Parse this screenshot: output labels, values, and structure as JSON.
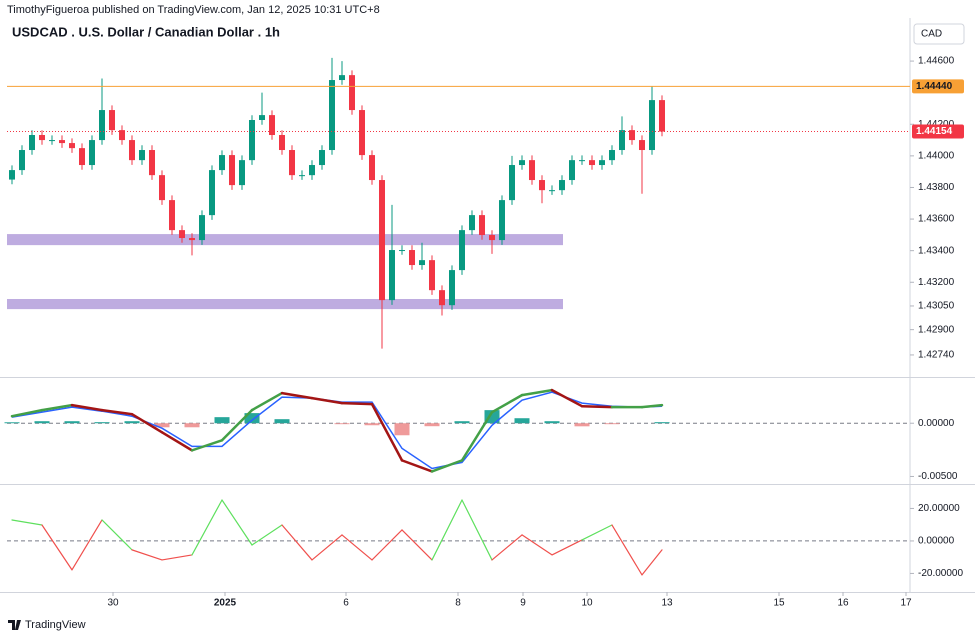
{
  "header": "TimothyFigueroa published on TradingView.com, Jan 12, 2025 10:31 UTC+8",
  "footer": "TradingView",
  "chart_data": [
    {
      "type": "candlestick",
      "title": "USDCAD . U.S. Dollar / Canadian Dollar . 1h",
      "currency": "CAD",
      "up_color": "#089981",
      "down_color": "#f23645",
      "open": [
        1.4385,
        1.4391,
        1.44037,
        1.44132,
        1.441,
        1.441,
        1.44081,
        1.44049,
        1.43942,
        1.441,
        1.4429,
        1.44163,
        1.441,
        1.43973,
        1.44037,
        1.43878,
        1.4372,
        1.4353,
        1.4348,
        1.43467,
        1.43625,
        1.4391,
        1.44005,
        1.43815,
        1.43973,
        1.44227,
        1.44258,
        1.44132,
        1.44037,
        1.43878,
        1.43878,
        1.43942,
        1.44037,
        1.4448,
        1.44511,
        1.4429,
        1.44005,
        1.43847,
        1.43087,
        1.43404,
        1.43404,
        1.43309,
        1.4334,
        1.4315,
        1.43055,
        1.43277,
        1.4353,
        1.43625,
        1.43499,
        1.43467,
        1.4372,
        1.43942,
        1.43973,
        1.43847,
        1.43783,
        1.43783,
        1.43847,
        1.43973,
        1.43973,
        1.43942,
        1.43973,
        1.44037,
        1.44163,
        1.441,
        1.44037,
        1.44353
      ],
      "high": [
        1.4394,
        1.44067,
        1.44162,
        1.44162,
        1.4413,
        1.4413,
        1.44111,
        1.44079,
        1.4413,
        1.4449,
        1.4432,
        1.44193,
        1.4413,
        1.44067,
        1.44067,
        1.43908,
        1.4375,
        1.4356,
        1.4351,
        1.43655,
        1.4394,
        1.44035,
        1.44035,
        1.44003,
        1.44257,
        1.444,
        1.44288,
        1.44162,
        1.44067,
        1.43908,
        1.43972,
        1.44067,
        1.4462,
        1.446,
        1.44541,
        1.4432,
        1.44035,
        1.43877,
        1.4369,
        1.43434,
        1.43434,
        1.4345,
        1.4337,
        1.4318,
        1.43307,
        1.4356,
        1.43655,
        1.43655,
        1.43529,
        1.4375,
        1.44,
        1.44003,
        1.44003,
        1.43877,
        1.43813,
        1.43877,
        1.44003,
        1.44003,
        1.44003,
        1.44003,
        1.44067,
        1.4425,
        1.44193,
        1.4413,
        1.4444,
        1.44383
      ],
      "low": [
        1.4382,
        1.4388,
        1.44007,
        1.4407,
        1.4407,
        1.44051,
        1.44019,
        1.43912,
        1.43912,
        1.4407,
        1.44133,
        1.4407,
        1.43943,
        1.43943,
        1.43848,
        1.4369,
        1.435,
        1.4345,
        1.4337,
        1.43437,
        1.43595,
        1.4388,
        1.43785,
        1.43785,
        1.43943,
        1.44197,
        1.44102,
        1.44007,
        1.43848,
        1.43848,
        1.43848,
        1.43912,
        1.44007,
        1.4445,
        1.4426,
        1.43975,
        1.43817,
        1.4278,
        1.43057,
        1.43374,
        1.43279,
        1.43279,
        1.4312,
        1.4299,
        1.43025,
        1.43247,
        1.435,
        1.43469,
        1.4338,
        1.43437,
        1.4369,
        1.43912,
        1.43817,
        1.437,
        1.43753,
        1.43753,
        1.43817,
        1.43943,
        1.43912,
        1.43912,
        1.43943,
        1.44007,
        1.4407,
        1.4376,
        1.44007,
        1.44124
      ],
      "close": [
        1.4391,
        1.44037,
        1.44132,
        1.441,
        1.441,
        1.44081,
        1.44049,
        1.43942,
        1.441,
        1.4429,
        1.44163,
        1.441,
        1.43973,
        1.44037,
        1.43878,
        1.4372,
        1.4353,
        1.4348,
        1.43467,
        1.43625,
        1.4391,
        1.44005,
        1.43815,
        1.43973,
        1.44227,
        1.44258,
        1.44132,
        1.44037,
        1.43878,
        1.43878,
        1.43942,
        1.44037,
        1.4448,
        1.44511,
        1.4429,
        1.44005,
        1.43847,
        1.43087,
        1.43404,
        1.43404,
        1.43309,
        1.4334,
        1.4315,
        1.43055,
        1.43277,
        1.4353,
        1.43625,
        1.43499,
        1.43467,
        1.4372,
        1.43942,
        1.43973,
        1.43847,
        1.43783,
        1.43783,
        1.43847,
        1.43973,
        1.43973,
        1.43942,
        1.43973,
        1.44037,
        1.44163,
        1.441,
        1.44037,
        1.44353,
        1.44154
      ],
      "zones": [
        {
          "top": 1.43505,
          "bottom": 1.43435,
          "end": 55.1,
          "color": "#b39ddb"
        },
        {
          "top": 1.43094,
          "bottom": 1.4303,
          "end": 55.1,
          "color": "#b39ddb"
        }
      ],
      "levels": [
        {
          "value": 1.4444,
          "label": "1.44440",
          "color": "#f7a035",
          "text_color": "#131722",
          "style": "solid"
        },
        {
          "value": 1.44154,
          "label": "1.44154",
          "color": "#f23645",
          "text_color": "#ffffff",
          "style": "dotted"
        }
      ],
      "xlim": [
        -0.5,
        89.8
      ],
      "ylim": [
        1.42613,
        1.4486
      ],
      "yticks": [
        {
          "value": 1.446,
          "label": "1.44600"
        },
        {
          "value": 1.442,
          "label": "1.44200"
        },
        {
          "value": 1.44,
          "label": "1.44000"
        },
        {
          "value": 1.438,
          "label": "1.43800"
        },
        {
          "value": 1.436,
          "label": "1.43600"
        },
        {
          "value": 1.434,
          "label": "1.43400"
        },
        {
          "value": 1.432,
          "label": "1.43200"
        },
        {
          "value": 1.4305,
          "label": "1.43050"
        },
        {
          "value": 1.429,
          "label": "1.42900"
        },
        {
          "value": 1.4274,
          "label": "1.42740"
        }
      ]
    },
    {
      "type": "line",
      "x": [
        0,
        3,
        6,
        9,
        12,
        15,
        18,
        21,
        24,
        27,
        30,
        33,
        36,
        39,
        42,
        45,
        48,
        51,
        54,
        57,
        60,
        63,
        65
      ],
      "series": [
        {
          "style": "histogram",
          "up_color": "#26a69a",
          "down_color": "#ef9a9a",
          "values": [
            9e-05,
            0.00019,
            0.00019,
            0.0001,
            0.00019,
            -0.00038,
            -0.00038,
            0.00057,
            0.00095,
            0.00038,
            0,
            -9e-05,
            -0.00019,
            -0.00113,
            -0.00028,
            0.00019,
            0.00123,
            0.00047,
            0.00019,
            -0.00029,
            -9e-05,
            0,
            0.0001
          ]
        },
        {
          "style": "line",
          "color": "#2962ff",
          "values": [
            0.00057,
            0.00104,
            0.00151,
            0.00113,
            0.00066,
            -0.00047,
            -0.00217,
            -0.00217,
            0.00028,
            0.00245,
            0.00236,
            0.00198,
            0.00198,
            -0.00236,
            -0.00425,
            -0.00368,
            -0.00019,
            0.00217,
            0.00292,
            0.00189,
            0.0016,
            0.00151,
            0.0016
          ]
        },
        {
          "style": "slope",
          "up_color": "#43a047",
          "down_color": "#a31515",
          "values": [
            0.00066,
            0.00123,
            0.0017,
            0.00123,
            0.00085,
            -0.00085,
            -0.00255,
            -0.0016,
            0.00123,
            0.00283,
            0.00236,
            0.00189,
            0.00179,
            -0.00349,
            -0.00453,
            -0.00349,
            0.00104,
            0.00264,
            0.00311,
            0.0016,
            0.00151,
            0.00151,
            0.0017
          ]
        }
      ],
      "xlim": [
        -0.5,
        89.8
      ],
      "ylim": [
        -0.00552,
        0.00406
      ],
      "yticks": [
        {
          "value": 0,
          "label": "0.00000"
        },
        {
          "value": -0.005,
          "label": "-0.00500"
        }
      ],
      "zero_line": true
    },
    {
      "type": "line",
      "x": [
        0,
        3,
        6,
        9,
        12,
        15,
        18,
        21,
        24,
        27,
        30,
        33,
        36,
        39,
        42,
        45,
        48,
        51,
        54,
        57,
        60,
        63,
        65
      ],
      "series": [
        {
          "style": "sign",
          "up_color": "#5ee05e",
          "down_color": "#f0504d",
          "values": [
            12.9,
            9.8,
            -17.8,
            12.9,
            -5.5,
            -11.7,
            -8.6,
            25.2,
            -2.5,
            9.8,
            -11.7,
            3.7,
            -11.7,
            6.8,
            -11.7,
            25.2,
            -11.7,
            3.7,
            -8.6,
            0.6,
            9.8,
            -20.9,
            -5.5
          ]
        }
      ],
      "xlim": [
        -0.5,
        89.8
      ],
      "ylim": [
        -30.2,
        33.2
      ],
      "yticks": [
        {
          "value": 20,
          "label": "20.00000"
        },
        {
          "value": 0,
          "label": "0.00000"
        },
        {
          "value": -20,
          "label": "-20.00000"
        }
      ],
      "zero_line": true,
      "xticks": [
        {
          "value": 10.1,
          "label": "30"
        },
        {
          "value": 21.3,
          "label": "2025"
        },
        {
          "value": 33.4,
          "label": "6"
        },
        {
          "value": 44.6,
          "label": "8"
        },
        {
          "value": 51.1,
          "label": "9"
        },
        {
          "value": 57.5,
          "label": "10"
        },
        {
          "value": 65.5,
          "label": "13"
        },
        {
          "value": 76.7,
          "label": "15"
        },
        {
          "value": 83.1,
          "label": "16"
        },
        {
          "value": 89.4,
          "label": "17"
        }
      ]
    }
  ]
}
